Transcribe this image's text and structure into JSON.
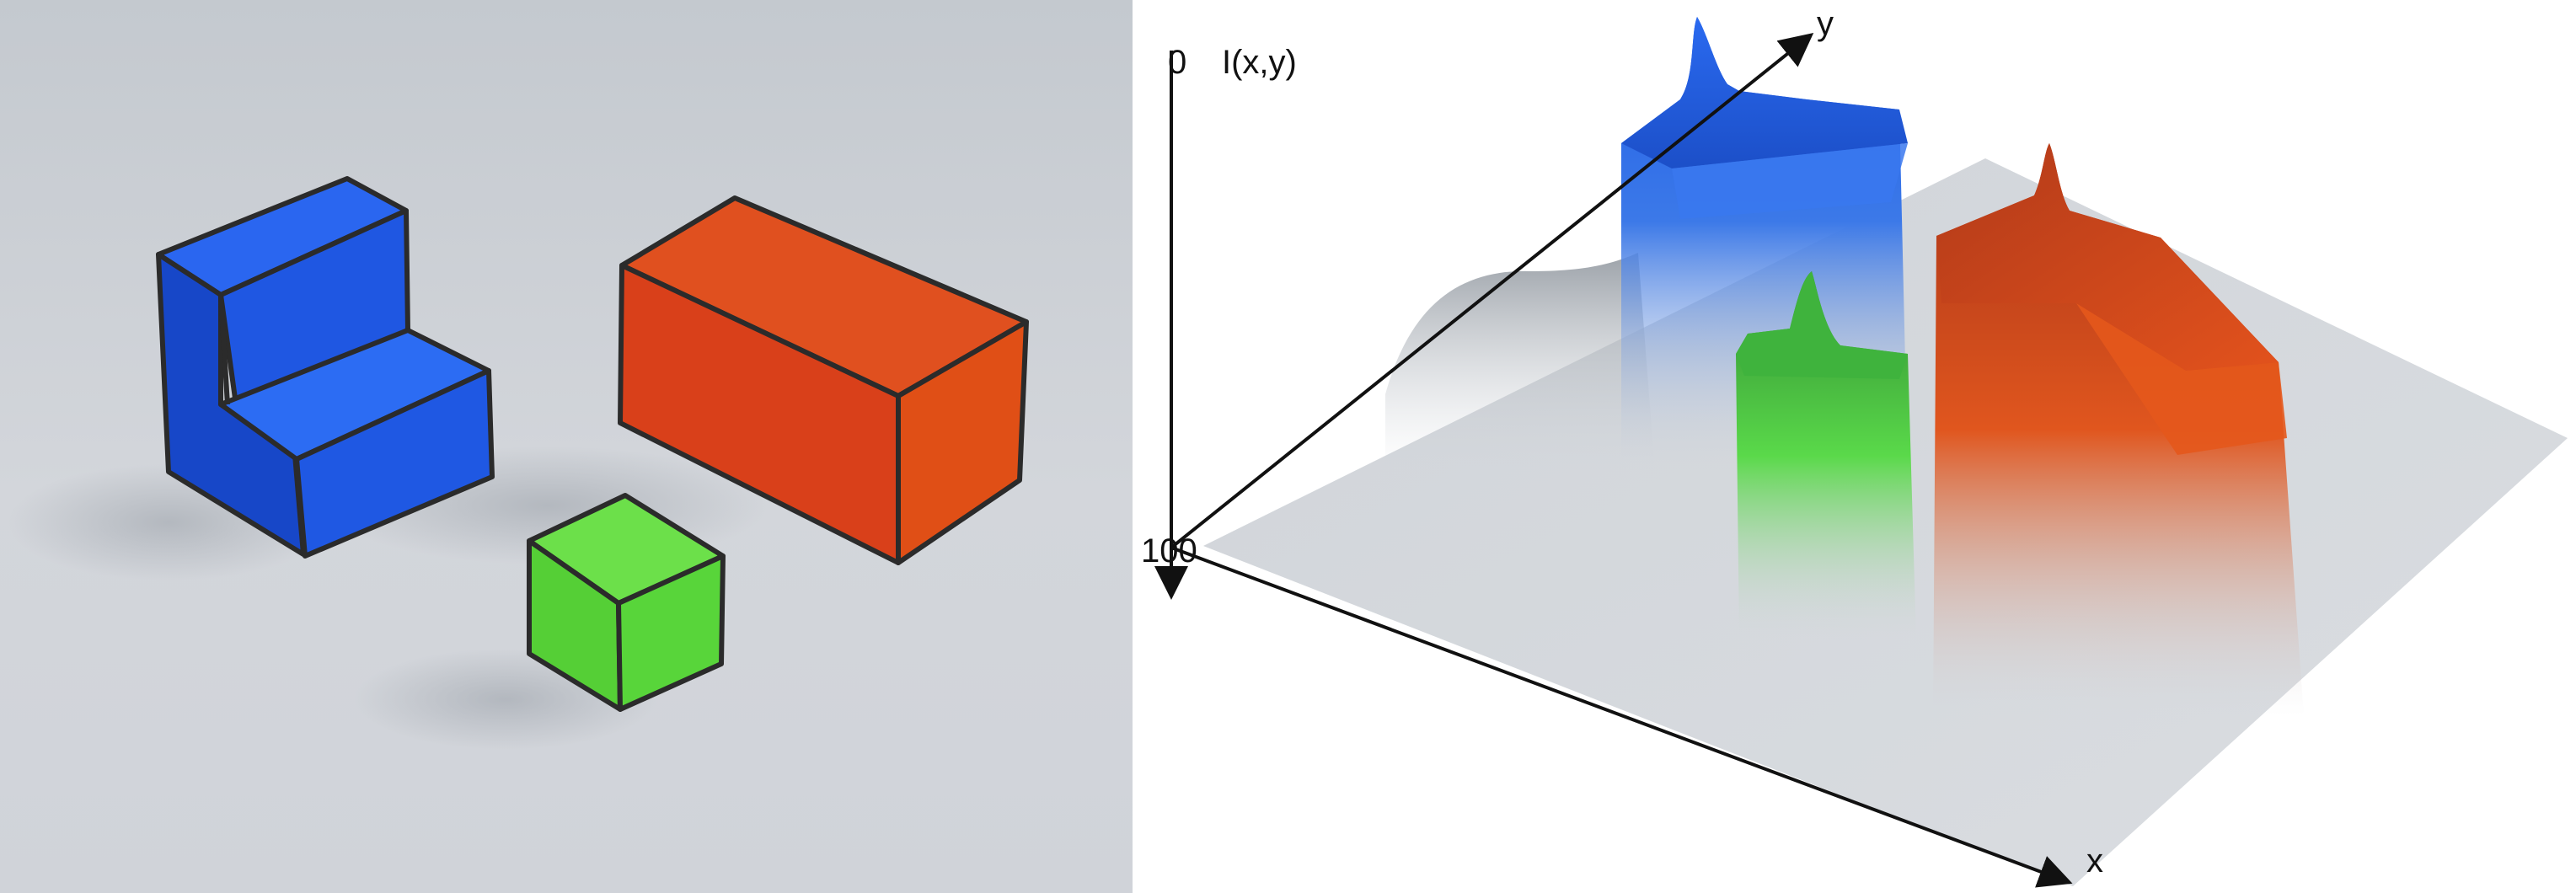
{
  "figure": {
    "photo": {
      "objects": [
        {
          "name": "stepped-block",
          "color": "#1e56e6"
        },
        {
          "name": "rectangular-box",
          "color": "#d9401a"
        },
        {
          "name": "cube",
          "color": "#5bd63a"
        }
      ],
      "background_color": "#c9cdd3"
    },
    "surface_plot": {
      "axis_labels": {
        "z_axis": "I(x,y)",
        "x_axis": "x",
        "y_axis": "y"
      },
      "z_ticks": {
        "top": "0",
        "bottom": "100"
      },
      "peaks": [
        {
          "name": "blue-peak",
          "color": "#1f5ee8"
        },
        {
          "name": "orange-peak",
          "color": "#d8461c"
        },
        {
          "name": "green-peak",
          "color": "#4fd646"
        }
      ],
      "base_color": "#d3d7dc"
    }
  }
}
